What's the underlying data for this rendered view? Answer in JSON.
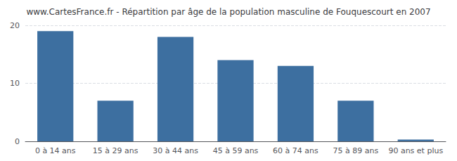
{
  "chart_data": {
    "type": "bar",
    "title": "www.CartesFrance.fr - Répartition par âge de la population masculine de Fouquescourt en 2007",
    "categories": [
      "0 à 14 ans",
      "15 à 29 ans",
      "30 à 44 ans",
      "45 à 59 ans",
      "60 à 74 ans",
      "75 à 89 ans",
      "90 ans et plus"
    ],
    "values": [
      19,
      7,
      18,
      14,
      13,
      7,
      0.3
    ],
    "color": "#3d6fa0",
    "ylim": [
      0,
      20
    ],
    "yticks": [
      0,
      10,
      20
    ],
    "grid": true
  }
}
